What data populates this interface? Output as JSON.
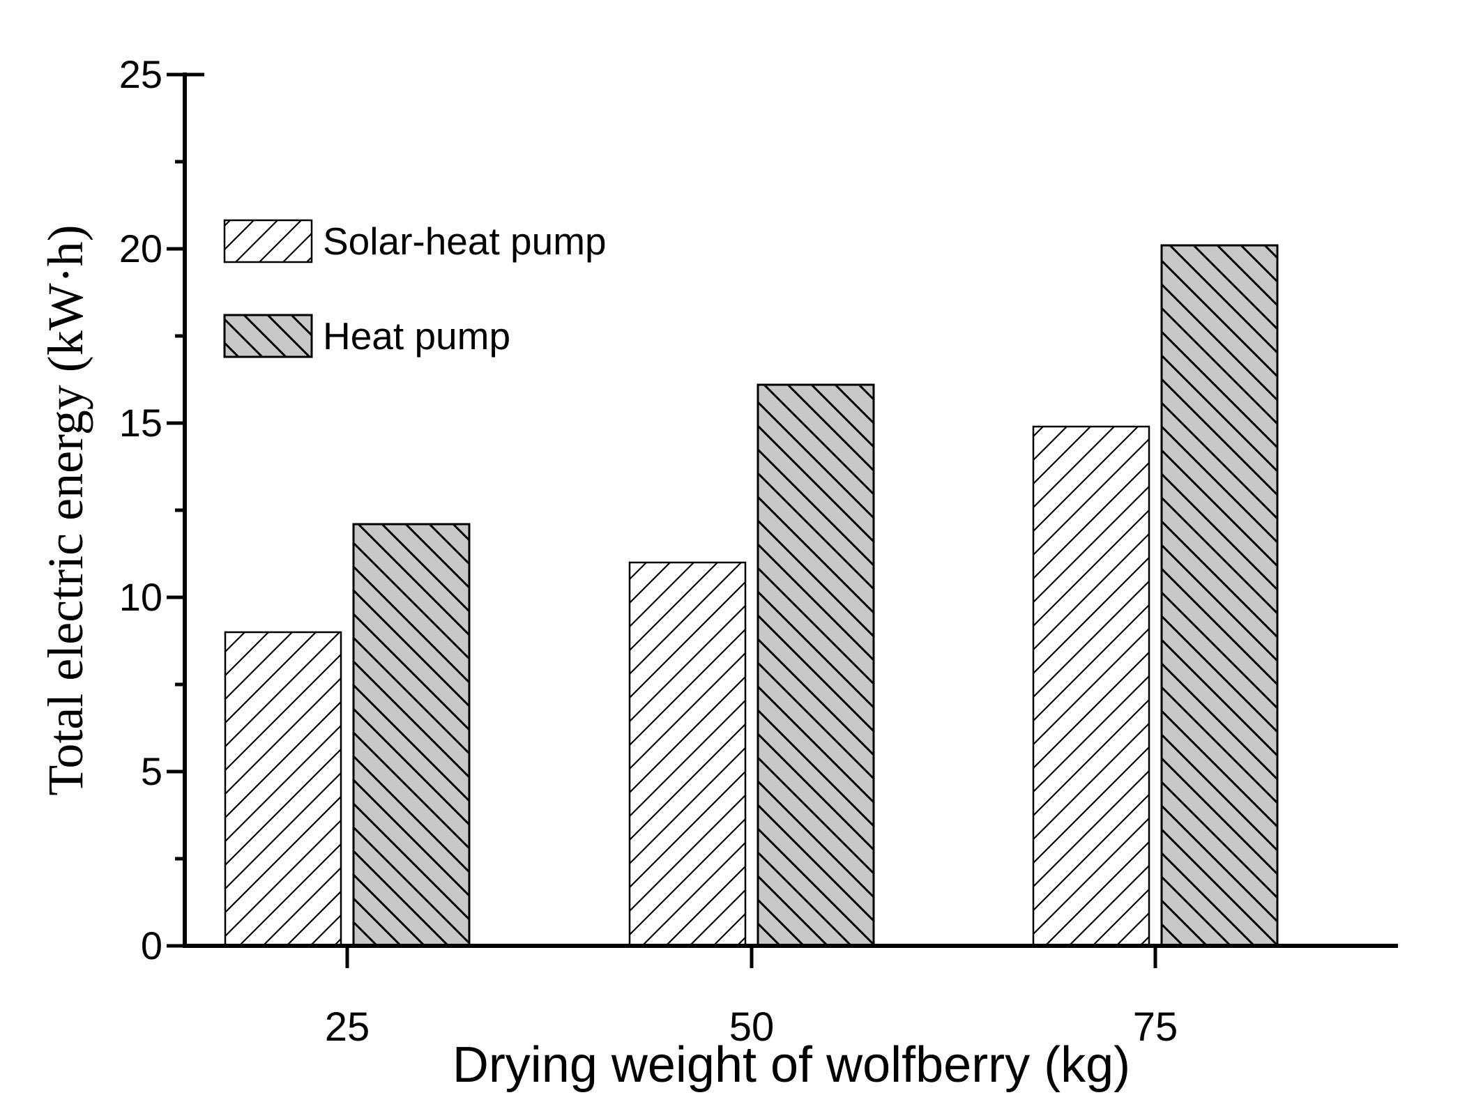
{
  "figure": {
    "background": "#ffffff",
    "text_color": "#000000",
    "axis_color": "#000000"
  },
  "chart_data": {
    "type": "bar",
    "title": "",
    "xlabel": "Drying weight of wolfberry (kg)",
    "ylabel": "Total electric energy (kW·h)",
    "categories": [
      "25",
      "50",
      "75"
    ],
    "series": [
      {
        "name": "Solar-heat pump",
        "values": [
          9.0,
          11.0,
          14.9
        ],
        "fill": "#ffffff",
        "hatch": "forward-diagonal",
        "hatch_color": "#000000"
      },
      {
        "name": "Heat pump",
        "values": [
          12.1,
          16.1,
          20.1
        ],
        "fill": "#c8c8c8",
        "hatch": "backward-diagonal",
        "hatch_color": "#000000"
      }
    ],
    "ylim": [
      0,
      25
    ],
    "y_major_ticks": [
      "0",
      "5",
      "10",
      "15",
      "20",
      "25"
    ],
    "y_minor_step": 2.5,
    "grid": "off",
    "legend_position": "upper-left-inside"
  }
}
